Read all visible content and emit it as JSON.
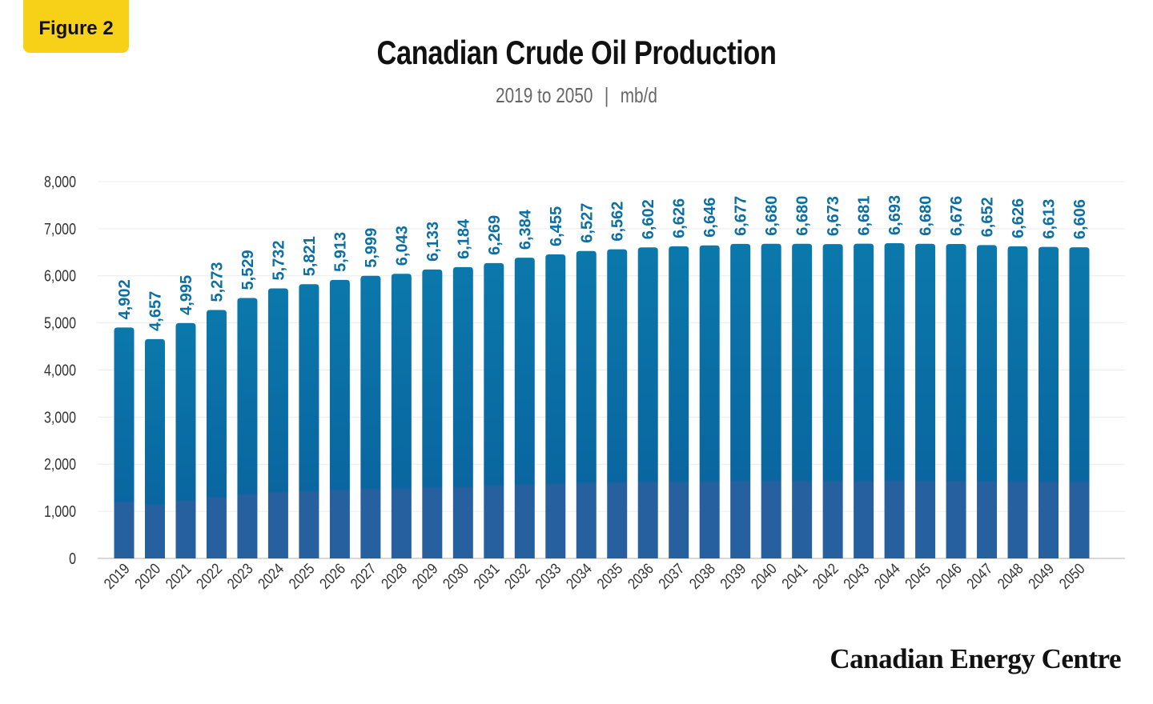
{
  "badge": "Figure 2",
  "brand": "Canadian Energy Centre",
  "chart_data": {
    "type": "bar",
    "title": "Canadian Crude Oil Production",
    "subtitle_range": "2019 to 2050",
    "subtitle_unit": "mb/d",
    "xlabel": "",
    "ylabel": "",
    "ylim": [
      0,
      8000
    ],
    "yticks": [
      0,
      1000,
      2000,
      3000,
      4000,
      5000,
      6000,
      7000,
      8000
    ],
    "grid": true,
    "colors": {
      "bar_top": "#0b78ab",
      "bar_bottom": "#27609f",
      "label": "#0b6fa4"
    },
    "categories": [
      "2019",
      "2020",
      "2021",
      "2022",
      "2023",
      "2024",
      "2025",
      "2026",
      "2027",
      "2028",
      "2029",
      "2030",
      "2031",
      "2032",
      "2033",
      "2034",
      "2035",
      "2036",
      "2037",
      "2038",
      "2039",
      "2040",
      "2041",
      "2042",
      "2043",
      "2044",
      "2045",
      "2046",
      "2047",
      "2048",
      "2049",
      "2050"
    ],
    "values": [
      4902,
      4657,
      4995,
      5273,
      5529,
      5732,
      5821,
      5913,
      5999,
      6043,
      6133,
      6184,
      6269,
      6384,
      6455,
      6527,
      6562,
      6602,
      6626,
      6646,
      6677,
      6680,
      6680,
      6673,
      6681,
      6693,
      6680,
      6676,
      6652,
      6626,
      6613,
      6606
    ]
  }
}
